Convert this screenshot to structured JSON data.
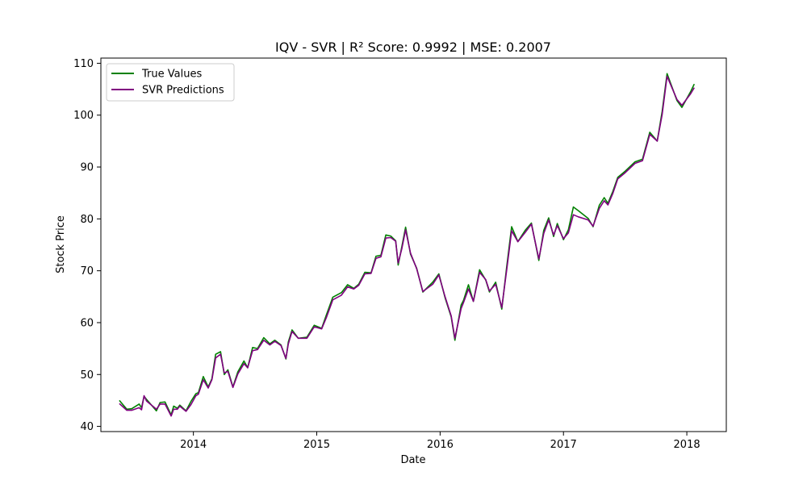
{
  "chart_data": {
    "type": "line",
    "title": "IQV - SVR | R² Score: 0.9992 | MSE: 0.2007",
    "xlabel": "Date",
    "ylabel": "Stock Price",
    "xlim": [
      2013.25,
      2018.32
    ],
    "ylim": [
      39,
      111
    ],
    "x_ticks": [
      2014,
      2015,
      2016,
      2017,
      2018
    ],
    "x_tick_labels": [
      "2014",
      "2015",
      "2016",
      "2017",
      "2018"
    ],
    "y_ticks": [
      40,
      50,
      60,
      70,
      80,
      90,
      100,
      110
    ],
    "y_tick_labels": [
      "40",
      "50",
      "60",
      "70",
      "80",
      "90",
      "100",
      "110"
    ],
    "grid": false,
    "legend_position": "top-left",
    "x": [
      2013.4,
      2013.46,
      2013.5,
      2013.56,
      2013.58,
      2013.6,
      2013.62,
      2013.7,
      2013.73,
      2013.77,
      2013.82,
      2013.84,
      2013.87,
      2013.89,
      2013.94,
      2013.98,
      2014.02,
      2014.04,
      2014.08,
      2014.12,
      2014.15,
      2014.18,
      2014.22,
      2014.25,
      2014.28,
      2014.32,
      2014.36,
      2014.41,
      2014.44,
      2014.48,
      2014.52,
      2014.57,
      2014.62,
      2014.66,
      2014.71,
      2014.75,
      2014.77,
      2014.8,
      2014.85,
      2014.92,
      2014.98,
      2015.04,
      2015.08,
      2015.13,
      2015.2,
      2015.25,
      2015.3,
      2015.34,
      2015.39,
      2015.44,
      2015.48,
      2015.52,
      2015.56,
      2015.6,
      2015.64,
      2015.66,
      2015.69,
      2015.72,
      2015.76,
      2015.81,
      2015.86,
      2015.94,
      2015.99,
      2016.04,
      2016.09,
      2016.12,
      2016.17,
      2016.19,
      2016.23,
      2016.27,
      2016.32,
      2016.37,
      2016.4,
      2016.45,
      2016.5,
      2016.54,
      2016.58,
      2016.63,
      2016.69,
      2016.74,
      2016.8,
      2016.84,
      2016.88,
      2016.92,
      2016.95,
      2017.0,
      2017.04,
      2017.08,
      2017.12,
      2017.2,
      2017.24,
      2017.29,
      2017.33,
      2017.36,
      2017.4,
      2017.44,
      2017.5,
      2017.58,
      2017.64,
      2017.7,
      2017.76,
      2017.8,
      2017.84,
      2017.92,
      2017.96,
      2018.03,
      2018.06
    ],
    "series": [
      {
        "name": "True Values",
        "color": "#008000",
        "values": [
          45.0,
          43.3,
          43.4,
          44.3,
          43.6,
          45.8,
          45.2,
          43.0,
          44.6,
          44.7,
          42.2,
          43.9,
          43.5,
          44.1,
          43.0,
          44.8,
          46.3,
          46.5,
          49.6,
          47.6,
          49.2,
          53.9,
          54.4,
          50.0,
          50.9,
          47.6,
          50.5,
          52.6,
          51.3,
          55.2,
          55.0,
          57.1,
          55.9,
          56.6,
          55.7,
          53.0,
          56.3,
          58.6,
          57.0,
          57.2,
          59.5,
          58.9,
          61.6,
          64.9,
          65.8,
          67.3,
          66.6,
          67.4,
          69.7,
          69.6,
          72.8,
          73.0,
          76.9,
          76.7,
          75.8,
          71.1,
          74.7,
          78.4,
          73.2,
          70.5,
          65.9,
          67.8,
          69.4,
          64.8,
          61.1,
          56.6,
          63.4,
          64.3,
          67.3,
          64.1,
          70.2,
          68.2,
          65.9,
          67.8,
          62.6,
          70.8,
          78.5,
          75.6,
          77.8,
          79.2,
          72.0,
          77.8,
          80.2,
          76.6,
          79.1,
          76.0,
          77.9,
          82.3,
          81.6,
          80.1,
          78.5,
          82.6,
          84.1,
          83.0,
          85.3,
          88.0,
          89.2,
          91.0,
          91.5,
          96.7,
          95.0,
          100.7,
          108.0,
          102.8,
          101.5,
          104.5,
          106.0
        ]
      },
      {
        "name": "SVR Predictions",
        "color": "#800080",
        "values": [
          44.4,
          43.1,
          43.1,
          43.6,
          43.2,
          45.9,
          44.9,
          43.3,
          44.3,
          44.3,
          42.0,
          43.3,
          43.3,
          43.9,
          42.9,
          44.2,
          45.9,
          46.2,
          49.0,
          47.4,
          49.0,
          53.2,
          53.9,
          50.3,
          50.6,
          47.5,
          50.1,
          52.1,
          51.3,
          54.6,
          54.8,
          56.6,
          55.7,
          56.4,
          55.6,
          53.1,
          55.9,
          58.3,
          57.0,
          57.0,
          59.2,
          58.8,
          61.1,
          64.4,
          65.3,
          66.9,
          66.5,
          67.2,
          69.4,
          69.5,
          72.4,
          72.7,
          76.3,
          76.4,
          75.7,
          71.5,
          74.3,
          77.9,
          73.4,
          70.4,
          66.0,
          67.4,
          69.2,
          65.0,
          61.3,
          57.0,
          62.7,
          63.9,
          66.5,
          64.1,
          69.7,
          68.3,
          66.1,
          67.4,
          62.9,
          70.2,
          77.7,
          75.6,
          77.4,
          79.0,
          72.3,
          77.2,
          79.8,
          76.9,
          78.7,
          76.2,
          77.3,
          80.8,
          80.4,
          79.8,
          78.6,
          82.0,
          83.5,
          82.7,
          84.9,
          87.7,
          88.9,
          90.7,
          91.2,
          96.3,
          95.0,
          100.1,
          107.5,
          103.0,
          101.9,
          104.1,
          105.3
        ]
      }
    ]
  }
}
